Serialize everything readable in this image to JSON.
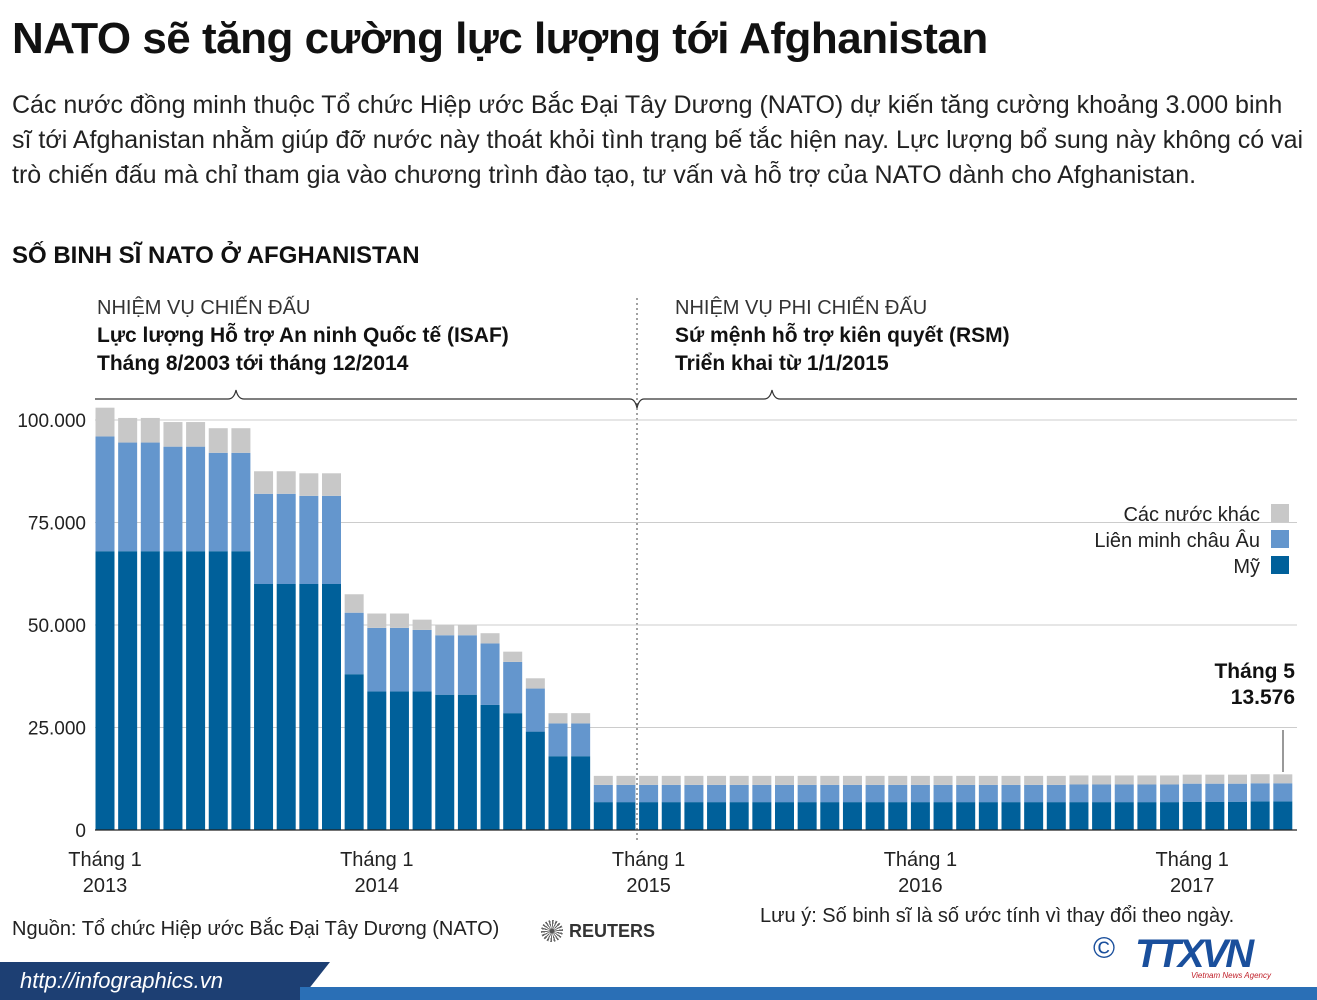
{
  "title": "NATO sẽ tăng cường lực lượng tới Afghanistan",
  "intro": "Các nước đồng minh thuộc Tổ chức Hiệp ước Bắc Đại Tây Dương (NATO) dự kiến tăng cường khoảng 3.000 binh sĩ tới Afghanistan nhằm giúp đỡ nước này thoát khỏi tình trạng bế tắc hiện nay. Lực lượng bổ sung này không có vai trò chiến đấu mà chỉ tham gia vào chương trình đào tạo, tư vấn và hỗ trợ của NATO dành cho Afghanistan.",
  "subtitle": "SỐ BINH SĨ NATO Ở AFGHANISTAN",
  "periods": [
    {
      "label": "NHIỆM VỤ CHIẾN ĐẤU",
      "name": "Lực lượng Hỗ trợ An ninh Quốc tế (ISAF)",
      "dates": "Tháng 8/2003 tới tháng 12/2014"
    },
    {
      "label": "NHIỆM VỤ PHI CHIẾN ĐẤU",
      "name": "Sứ mệnh hỗ trợ kiên quyết (RSM)",
      "dates": "Triển khai từ 1/1/2015"
    }
  ],
  "annotation": {
    "line1": "Tháng 5",
    "line2": "13.576"
  },
  "source": "Nguồn: Tổ chức Hiệp ước Bắc Đại Tây Dương (NATO)",
  "reuters": "REUTERS",
  "note": "Lưu ý: Số binh sĩ là số ước tính vì thay đổi theo ngày.",
  "copyright": "©",
  "logo": {
    "text": "TTXVN",
    "tagline": "Vietnam News Agency"
  },
  "footer_url": "http://infographics.vn",
  "colors": {
    "my": "#00609a",
    "eu": "#6496cd",
    "other": "#c8c8c8"
  },
  "chart_data": {
    "type": "bar",
    "stacked": true,
    "ylim": [
      0,
      100000
    ],
    "yticks": [
      {
        "value": 0,
        "label": "0"
      },
      {
        "value": 25000,
        "label": "25.000"
      },
      {
        "value": 50000,
        "label": "50.000"
      },
      {
        "value": 75000,
        "label": "75.000"
      },
      {
        "value": 100000,
        "label": "100.000"
      }
    ],
    "x_ticks": [
      {
        "index": 0,
        "line1": "Tháng 1",
        "line2": "2013"
      },
      {
        "index": 12,
        "line1": "Tháng 1",
        "line2": "2014"
      },
      {
        "index": 24,
        "line1": "Tháng 1",
        "line2": "2015"
      },
      {
        "index": 36,
        "line1": "Tháng 1",
        "line2": "2016"
      },
      {
        "index": 48,
        "line1": "Tháng 1",
        "line2": "2017"
      }
    ],
    "legend": [
      "Các nước khác",
      "Liên minh châu Âu",
      "Mỹ"
    ],
    "series": [
      {
        "name": "Mỹ",
        "values": [
          68000,
          68000,
          68000,
          68000,
          68000,
          68000,
          68000,
          60000,
          60000,
          60000,
          60000,
          38000,
          33800,
          33800,
          33800,
          33000,
          33000,
          30500,
          28500,
          24000,
          18000,
          18000,
          6800,
          6800,
          6800,
          6800,
          6800,
          6800,
          6800,
          6800,
          6800,
          6800,
          6800,
          6800,
          6800,
          6800,
          6800,
          6800,
          6800,
          6800,
          6800,
          6800,
          6800,
          6800,
          6800,
          6800,
          6800,
          6800,
          6900,
          6900,
          6900,
          7000,
          7000
        ]
      },
      {
        "name": "Liên minh châu Âu",
        "values": [
          28000,
          26500,
          26500,
          25500,
          25500,
          24000,
          24000,
          22000,
          22000,
          21500,
          21500,
          15000,
          15500,
          15500,
          15000,
          14500,
          14500,
          15000,
          12500,
          10500,
          8000,
          8000,
          4200,
          4200,
          4200,
          4200,
          4200,
          4200,
          4200,
          4200,
          4200,
          4200,
          4200,
          4200,
          4200,
          4200,
          4200,
          4200,
          4200,
          4200,
          4200,
          4200,
          4200,
          4300,
          4300,
          4300,
          4300,
          4300,
          4400,
          4400,
          4400,
          4400,
          4400
        ]
      },
      {
        "name": "Các nước khác",
        "values": [
          7000,
          6000,
          6000,
          6000,
          6000,
          6000,
          6000,
          5500,
          5500,
          5500,
          5500,
          4500,
          3500,
          3500,
          2500,
          2500,
          2500,
          2500,
          2500,
          2500,
          2500,
          2500,
          2200,
          2200,
          2200,
          2200,
          2200,
          2200,
          2200,
          2200,
          2200,
          2200,
          2200,
          2200,
          2200,
          2200,
          2200,
          2200,
          2200,
          2200,
          2200,
          2200,
          2200,
          2200,
          2200,
          2200,
          2200,
          2200,
          2200,
          2200,
          2200,
          2200,
          2176
        ]
      }
    ]
  }
}
